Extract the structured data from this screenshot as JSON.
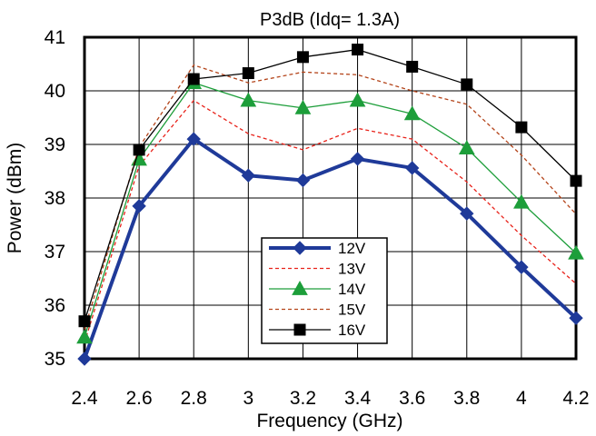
{
  "chart_data": {
    "type": "line",
    "title": "P3dB (Idq= 1.3A)",
    "xlabel": "Frequency (GHz)",
    "ylabel": "Power (dBm)",
    "xlim": [
      2.4,
      4.2
    ],
    "ylim": [
      35,
      41
    ],
    "x_ticks": [
      2.4,
      2.6,
      2.8,
      3,
      3.2,
      3.4,
      3.6,
      3.8,
      4,
      4.2
    ],
    "x_tick_labels": [
      "2.4",
      "2.6",
      "2.8",
      "3",
      "3.2",
      "3.4",
      "3.6",
      "3.8",
      "4",
      "4.2"
    ],
    "y_ticks": [
      35,
      36,
      37,
      38,
      39,
      40,
      41
    ],
    "y_tick_labels": [
      "35",
      "36",
      "37",
      "38",
      "39",
      "40",
      "41"
    ],
    "grid": true,
    "legend_position": "bottom-center",
    "x": [
      2.4,
      2.6,
      2.8,
      3.0,
      3.2,
      3.4,
      3.6,
      3.8,
      4.0,
      4.2
    ],
    "series": [
      {
        "name": "12V",
        "color": "#1f3a99",
        "line": "solid",
        "width": 4,
        "marker": "diamond",
        "values": [
          35.0,
          37.85,
          39.1,
          38.42,
          38.33,
          38.73,
          38.56,
          37.71,
          36.71,
          35.76
        ]
      },
      {
        "name": "13V",
        "color": "#e8221a",
        "line": "dashed",
        "width": 1.3,
        "marker": "none",
        "values": [
          35.3,
          38.6,
          39.82,
          39.2,
          38.9,
          39.3,
          39.1,
          38.3,
          37.3,
          36.4
        ]
      },
      {
        "name": "14V",
        "color": "#1d9e3a",
        "line": "solid",
        "width": 1.3,
        "marker": "triangle",
        "values": [
          35.4,
          38.72,
          40.15,
          39.82,
          39.68,
          39.82,
          39.57,
          38.93,
          37.92,
          36.97
        ]
      },
      {
        "name": "15V",
        "color": "#b4441a",
        "line": "dashed",
        "width": 1.3,
        "marker": "none",
        "values": [
          35.55,
          38.95,
          40.48,
          40.15,
          40.35,
          40.3,
          40.0,
          39.75,
          38.8,
          37.7
        ]
      },
      {
        "name": "16V",
        "color": "#000000",
        "line": "solid",
        "width": 1.3,
        "marker": "square",
        "values": [
          35.7,
          38.9,
          40.22,
          40.33,
          40.63,
          40.77,
          40.45,
          40.12,
          39.32,
          38.32
        ]
      }
    ]
  }
}
